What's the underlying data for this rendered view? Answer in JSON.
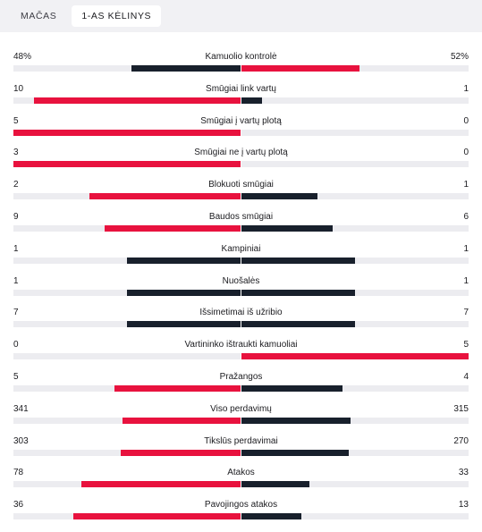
{
  "tabs": [
    {
      "label": "MAČAS",
      "active": false
    },
    {
      "label": "1-AS KĖLINYS",
      "active": true
    }
  ],
  "colors": {
    "leading": "#e8123e",
    "trailing": "#18202c",
    "track": "#ececf0"
  },
  "stats": [
    {
      "label": "Kamuolio kontrolė",
      "home": "48%",
      "away": "52%",
      "home_num": 48,
      "away_num": 52
    },
    {
      "label": "Smūgiai link vartų",
      "home": "10",
      "away": "1",
      "home_num": 10,
      "away_num": 1
    },
    {
      "label": "Smūgiai į vartų plotą",
      "home": "5",
      "away": "0",
      "home_num": 5,
      "away_num": 0
    },
    {
      "label": "Smūgiai ne į vartų plotą",
      "home": "3",
      "away": "0",
      "home_num": 3,
      "away_num": 0
    },
    {
      "label": "Blokuoti smūgiai",
      "home": "2",
      "away": "1",
      "home_num": 2,
      "away_num": 1
    },
    {
      "label": "Baudos smūgiai",
      "home": "9",
      "away": "6",
      "home_num": 9,
      "away_num": 6
    },
    {
      "label": "Kampiniai",
      "home": "1",
      "away": "1",
      "home_num": 1,
      "away_num": 1
    },
    {
      "label": "Nuošalės",
      "home": "1",
      "away": "1",
      "home_num": 1,
      "away_num": 1
    },
    {
      "label": "Išsimetimai iš užribio",
      "home": "7",
      "away": "7",
      "home_num": 7,
      "away_num": 7
    },
    {
      "label": "Vartininko ištraukti kamuoliai",
      "home": "0",
      "away": "5",
      "home_num": 0,
      "away_num": 5
    },
    {
      "label": "Pražangos",
      "home": "5",
      "away": "4",
      "home_num": 5,
      "away_num": 4
    },
    {
      "label": "Viso perdavimų",
      "home": "341",
      "away": "315",
      "home_num": 341,
      "away_num": 315
    },
    {
      "label": "Tikslūs perdavimai",
      "home": "303",
      "away": "270",
      "home_num": 303,
      "away_num": 270
    },
    {
      "label": "Atakos",
      "home": "78",
      "away": "33",
      "home_num": 78,
      "away_num": 33
    },
    {
      "label": "Pavojingos atakos",
      "home": "36",
      "away": "13",
      "home_num": 36,
      "away_num": 13
    }
  ]
}
